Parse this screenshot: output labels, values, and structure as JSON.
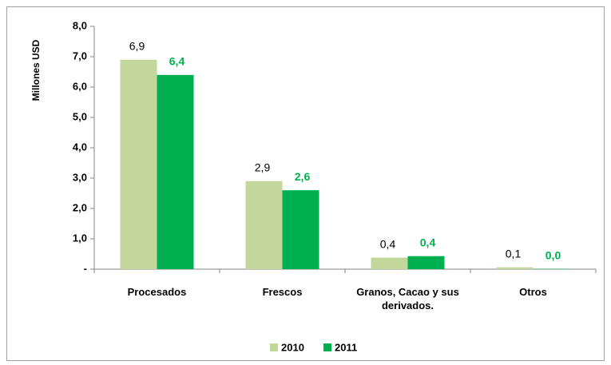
{
  "chart_data": {
    "type": "bar",
    "y_label": "Millones USD",
    "categories": [
      "Procesados",
      "Frescos",
      "Granos, Cacao y sus derivados.",
      "Otros"
    ],
    "series": [
      {
        "name": "2010",
        "color": "#c3d69b",
        "values": [
          6.9,
          2.9,
          0.38,
          0.06
        ],
        "value_labels": [
          "6,9",
          "2,9",
          "0,4",
          "0,1"
        ]
      },
      {
        "name": "2011",
        "color": "#00b050",
        "values": [
          6.4,
          2.6,
          0.43,
          0.01
        ],
        "value_labels": [
          "6,4",
          "2,6",
          "0,4",
          "0,0"
        ]
      }
    ],
    "ylim": [
      0,
      8
    ],
    "yticks": [
      {
        "value": 0,
        "label": "-"
      },
      {
        "value": 1,
        "label": "1,0"
      },
      {
        "value": 2,
        "label": "2,0"
      },
      {
        "value": 3,
        "label": "3,0"
      },
      {
        "value": 4,
        "label": "4,0"
      },
      {
        "value": 5,
        "label": "5,0"
      },
      {
        "value": 6,
        "label": "6,0"
      },
      {
        "value": 7,
        "label": "7,0"
      },
      {
        "value": 8,
        "label": "8,0"
      }
    ],
    "legend": "bottom",
    "grid": false
  }
}
